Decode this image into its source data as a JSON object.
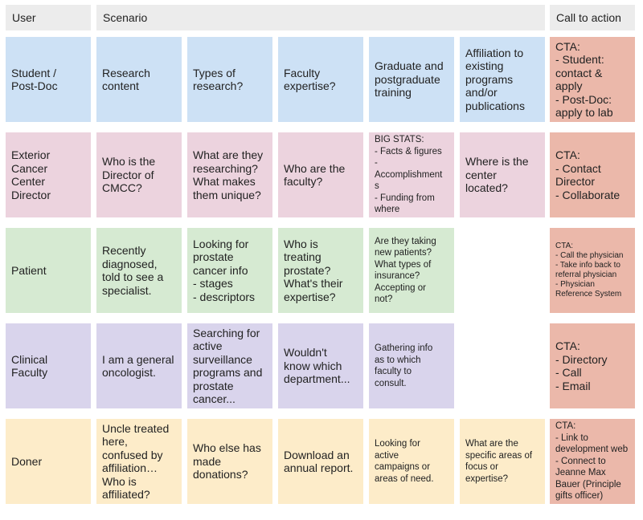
{
  "header": {
    "user": "User",
    "scenario": "Scenario",
    "cta": "Call to action"
  },
  "rows": [
    {
      "user": "Student /\nPost-Doc",
      "cells": [
        "Research\ncontent",
        "Types of\nresearch?",
        "Faculty\nexpertise?",
        "Graduate and\npostgraduate\ntraining",
        "Affiliation to\nexisting\nprograms\nand/or\npublications"
      ],
      "cta": "CTA:\n- Student:\ncontact &\napply\n- Post-Doc:\napply to lab"
    },
    {
      "user": "Exterior\nCancer\nCenter\nDirector",
      "cells": [
        "Who is the\nDirector of\nCMCC?",
        "What are they\nresearching?\nWhat makes\nthem unique?",
        "Who are the\nfaculty?",
        "BIG STATS:\n- Facts & figures\n-\nAccomplishment\ns\n- Funding from\nwhere",
        "Where is the\ncenter\nlocated?"
      ],
      "cta": "CTA:\n- Contact\nDirector\n- Collaborate"
    },
    {
      "user": "Patient",
      "cells": [
        "Recently\ndiagnosed,\ntold to see a\nspecialist.",
        "Looking for\nprostate\ncancer info\n- stages\n- descriptors",
        "Who is\ntreating\nprostate?\nWhat's their\nexpertise?",
        "Are they taking\nnew patients?\nWhat types of\ninsurance?\nAccepting or\nnot?"
      ],
      "cta": "CTA:\n- Call the physician\n- Take info back to\nreferral physician\n- Physician\nReference System"
    },
    {
      "user": "Clinical\nFaculty",
      "cells": [
        "I am a general\noncologist.",
        "Searching for\nactive\nsurveillance\nprograms and\nprostate\ncancer...",
        "Wouldn't\nknow which\ndepartment...",
        "Gathering info\nas to which\nfaculty to\nconsult."
      ],
      "cta": "CTA:\n- Directory\n- Call\n- Email"
    },
    {
      "user": "Doner",
      "cells": [
        "Uncle treated\nhere,\nconfused by\naffiliation…\nWho is\naffiliated?",
        "Who else has\nmade\ndonations?",
        "Download an\nannual report.",
        "Looking for\nactive\ncampaigns or\nareas of need.",
        "What are the\nspecific areas of\nfocus or\nexpertise?"
      ],
      "cta": "CTA:\n- Link to\ndevelopment web\n- Connect to\nJeanne Max\nBauer (Principle\ngifts officer)"
    }
  ],
  "colors": {
    "row_backgrounds": [
      "#cde1f5",
      "#ecd3de",
      "#d6ead2",
      "#d9d4ec",
      "#fdecc9"
    ],
    "cta_background": "#ebb8aa",
    "header_background": "#ececec"
  }
}
